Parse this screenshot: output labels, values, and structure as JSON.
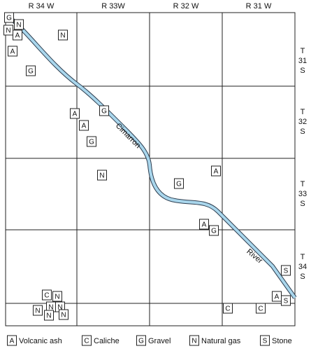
{
  "columns": [
    "R 34 W",
    "R 33W",
    "R 32 W",
    "R 31 W"
  ],
  "rows": [
    [
      "T",
      "31",
      "S"
    ],
    [
      "T",
      "32",
      "S"
    ],
    [
      "T",
      "33",
      "S"
    ],
    [
      "T",
      "34",
      "S"
    ]
  ],
  "river_labels": [
    "Cimarron",
    "River"
  ],
  "markers": [
    "G",
    "N",
    "N",
    "A",
    "N",
    "A",
    "G",
    "A",
    "G",
    "A",
    "G",
    "N",
    "A",
    "G",
    "A",
    "G",
    "S",
    "C",
    "N",
    "N",
    "N",
    "N",
    "N",
    "N",
    "A",
    "S",
    "C",
    "C"
  ],
  "legend": [
    {
      "symbol": "A",
      "label": "Volcanic ash"
    },
    {
      "symbol": "C",
      "label": "Caliche"
    },
    {
      "symbol": "G",
      "label": "Gravel"
    },
    {
      "symbol": "N",
      "label": "Natural gas"
    },
    {
      "symbol": "S",
      "label": "Stone"
    }
  ]
}
